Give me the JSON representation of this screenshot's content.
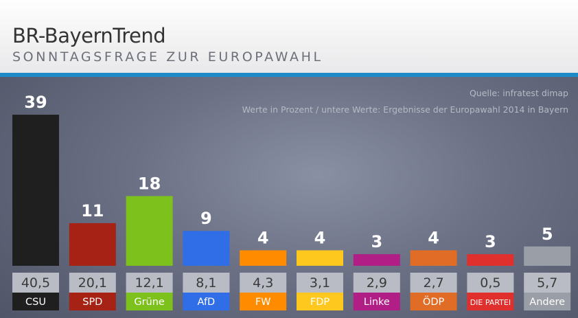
{
  "header": {
    "title": "BR-BayernTrend",
    "subtitle": "SONNTAGSFRAGE ZUR EUROPAWAHL"
  },
  "notes": {
    "source": "Quelle: infratest dimap",
    "description": "Werte in Prozent / untere Werte: Ergebnisse der Europawahl 2014 in Bayern"
  },
  "chart_data": {
    "type": "bar",
    "categories": [
      "CSU",
      "SPD",
      "Grüne",
      "AfD",
      "FW",
      "FDP",
      "Linke",
      "ÖDP",
      "DIE PARTEI",
      "Andere"
    ],
    "values": [
      39,
      11,
      18,
      9,
      4,
      4,
      3,
      4,
      3,
      5
    ],
    "value_labels": [
      "39",
      "11",
      "18",
      "9",
      "4",
      "4",
      "3",
      "4",
      "3",
      "5"
    ],
    "previous_values": [
      40.5,
      20.1,
      12.1,
      8.1,
      4.3,
      3.1,
      2.9,
      2.7,
      0.5,
      5.7
    ],
    "previous_labels": [
      "40,5",
      "20,1",
      "12,1",
      "8,1",
      "4,3",
      "3,1",
      "2,9",
      "2,7",
      "0,5",
      "5,7"
    ],
    "colors": [
      "#1f1f1f",
      "#a52214",
      "#7cc11c",
      "#2f6ee6",
      "#ff8c00",
      "#ffc81e",
      "#b01e86",
      "#e06c26",
      "#e0302e",
      "#9a9ea6"
    ],
    "label_text_colors": [
      "#ffffff",
      "#ffffff",
      "#ffffff",
      "#ffffff",
      "#ffffff",
      "#ffffff",
      "#ffffff",
      "#ffffff",
      "#ffffff",
      "#ffffff"
    ],
    "ylim": [
      0,
      40
    ],
    "grid": false,
    "legend": "none"
  }
}
